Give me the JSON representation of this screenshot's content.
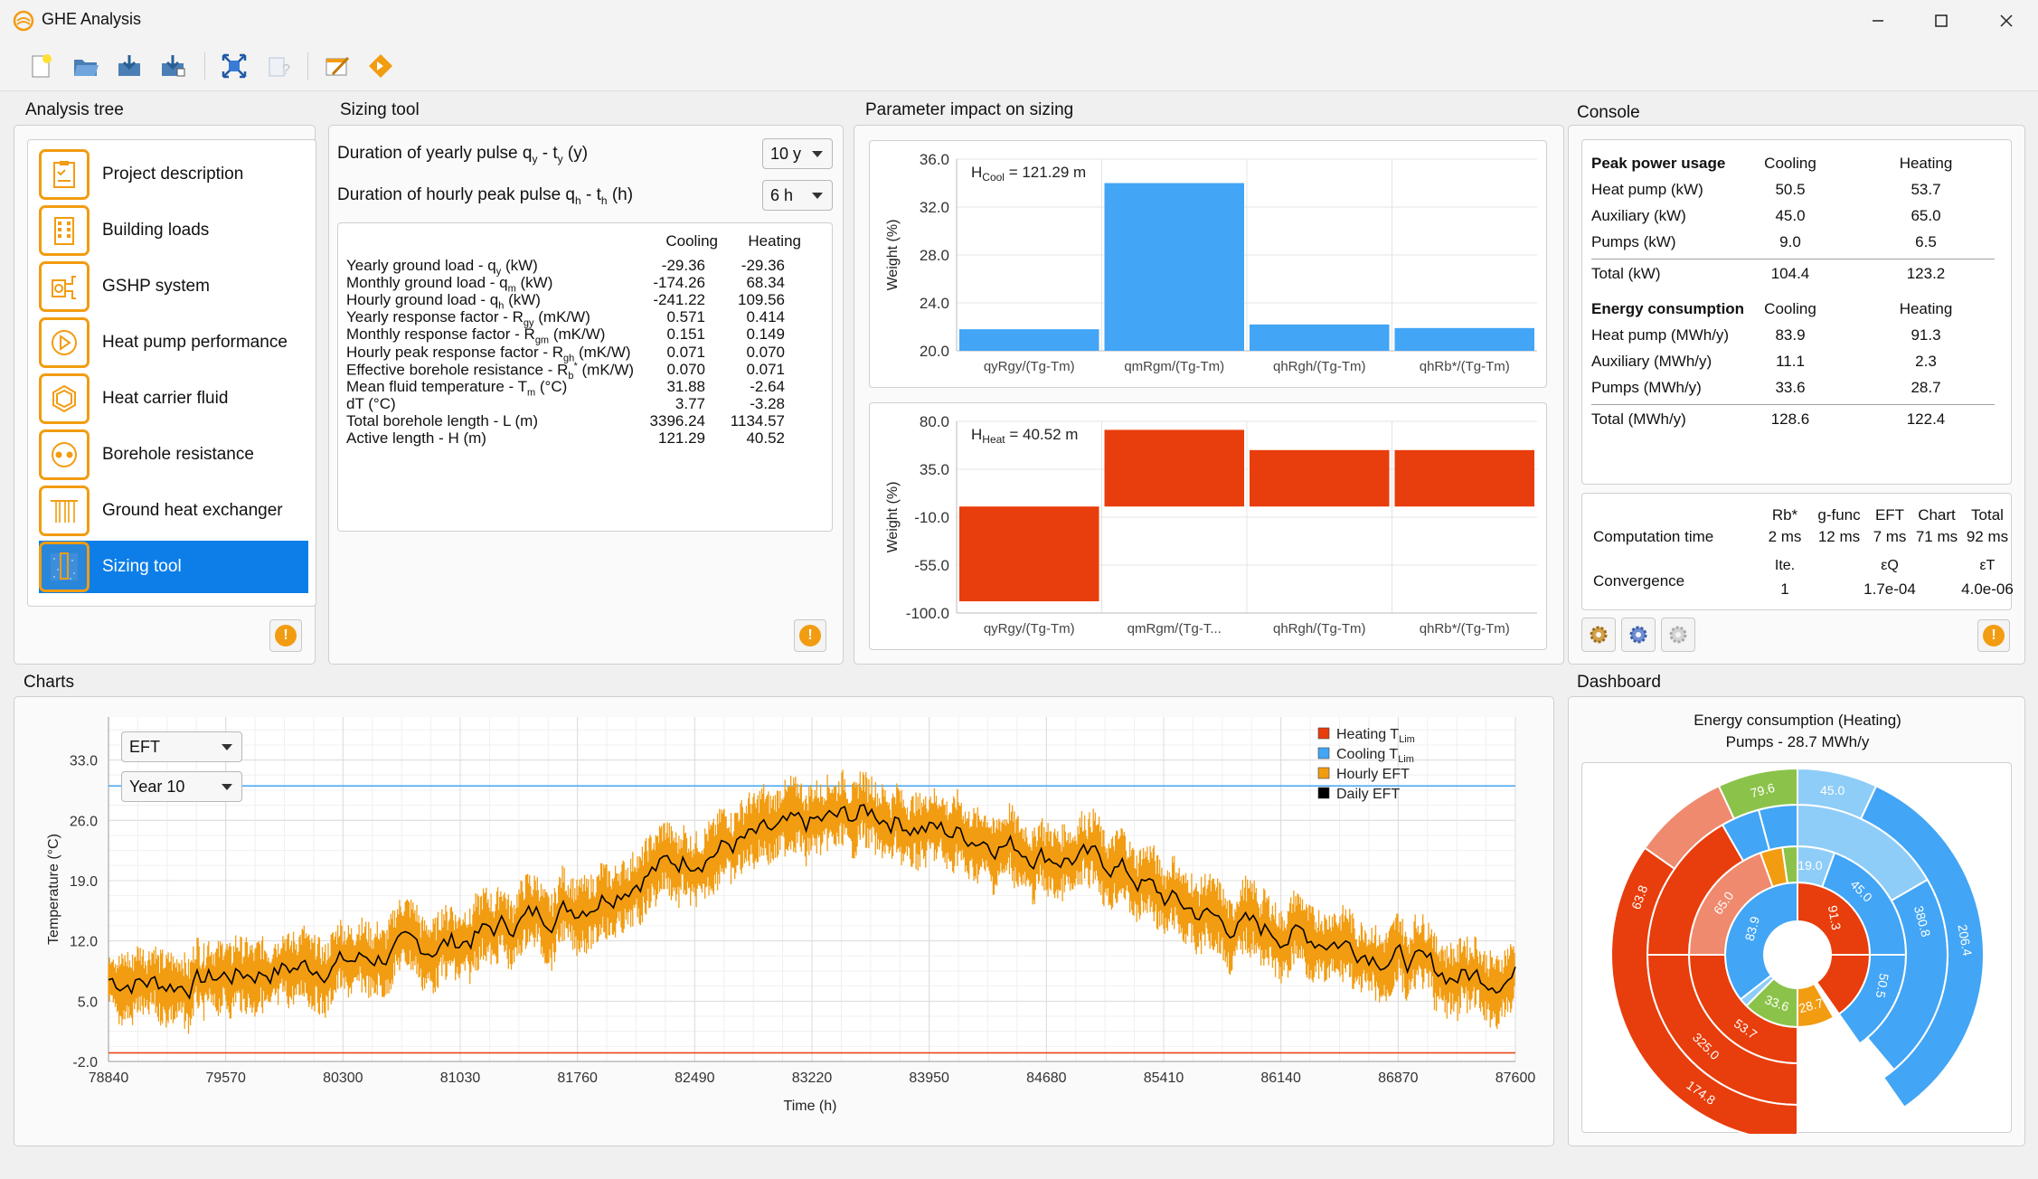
{
  "window": {
    "title": "GHE Analysis"
  },
  "analysis_tree": {
    "title": "Analysis tree",
    "items": [
      {
        "label": "Project description"
      },
      {
        "label": "Building loads"
      },
      {
        "label": "GSHP system"
      },
      {
        "label": "Heat pump performance"
      },
      {
        "label": "Heat carrier fluid"
      },
      {
        "label": "Borehole resistance"
      },
      {
        "label": "Ground heat exchanger"
      },
      {
        "label": "Sizing tool"
      }
    ]
  },
  "sizing_tool": {
    "title": "Sizing tool",
    "yearly_pulse_label": "Duration of yearly pulse q",
    "yearly_pulse_sub": "y",
    "yearly_pulse_mid": " - t",
    "yearly_pulse_sub2": "y",
    "yearly_pulse_end": " (y)",
    "yearly_pulse_value": "10 y",
    "hourly_pulse_label": "Duration of hourly peak pulse q",
    "hourly_pulse_sub": "h",
    "hourly_pulse_mid": " - t",
    "hourly_pulse_sub2": "h",
    "hourly_pulse_end": " (h)",
    "hourly_pulse_value": "6 h",
    "col_cooling": "Cooling",
    "col_heating": "Heating",
    "rows": [
      {
        "a": "Yearly ground load - q",
        "s": "y",
        "b": " (kW)",
        "cool": "-29.36",
        "heat": "-29.36"
      },
      {
        "a": "Monthly ground load - q",
        "s": "m",
        "b": " (kW)",
        "cool": "-174.26",
        "heat": "68.34"
      },
      {
        "a": "Hourly ground load - q",
        "s": "h",
        "b": " (kW)",
        "cool": "-241.22",
        "heat": "109.56"
      },
      {
        "a": "Yearly response factor - R",
        "s": "gy",
        "b": " (mK/W)",
        "cool": "0.571",
        "heat": "0.414"
      },
      {
        "a": "Monthly response factor - R",
        "s": "gm",
        "b": " (mK/W)",
        "cool": "0.151",
        "heat": "0.149"
      },
      {
        "a": "Hourly peak response factor - R",
        "s": "gh",
        "b": " (mK/W)",
        "cool": "0.071",
        "heat": "0.070"
      },
      {
        "a": "Effective borehole resistance - R",
        "s": "b",
        "sup": "*",
        "b": " (mK/W)",
        "cool": "0.070",
        "heat": "0.071"
      },
      {
        "a": "Mean fluid temperature - T",
        "s": "m",
        "b": " (°C)",
        "cool": "31.88",
        "heat": "-2.64"
      },
      {
        "a": "dT (°C)",
        "s": "",
        "b": "",
        "cool": "3.77",
        "heat": "-3.28"
      },
      {
        "a": "Total borehole length - L (m)",
        "s": "",
        "b": "",
        "cool": "3396.24",
        "heat": "1134.57"
      },
      {
        "a": "Active length - H (m)",
        "s": "",
        "b": "",
        "cool": "121.29",
        "heat": "40.52"
      }
    ]
  },
  "parameter_impact": {
    "title": "Parameter impact on sizing",
    "cool_chart": {
      "annotation_prefix": "H",
      "annotation_sub": "Cool",
      "annotation_value": " = 121.29 m",
      "ylabel": "Weight (%)",
      "yticks": [
        "36.0",
        "32.0",
        "28.0",
        "24.0",
        "20.0"
      ],
      "categories": [
        "qyRgy/(Tg-Tm)",
        "qmRgm/(Tg-Tm)",
        "qhRgh/(Tg-Tm)",
        "qhRb*/(Tg-Tm)"
      ],
      "values": [
        21.8,
        34.0,
        22.2,
        21.9
      ],
      "ylim": [
        20,
        36
      ],
      "color": "#42a5f5"
    },
    "heat_chart": {
      "annotation_prefix": "H",
      "annotation_sub": "Heat",
      "annotation_value": " = 40.52 m",
      "ylabel": "Weight (%)",
      "yticks": [
        "80.0",
        "35.0",
        "-10.0",
        "-55.0",
        "-100.0"
      ],
      "categories": [
        "qyRgy/(Tg-Tm)",
        "qmRgm/(Tg-T...",
        "qhRgh/(Tg-Tm)",
        "qhRb*/(Tg-Tm)"
      ],
      "values": [
        -89.0,
        72.0,
        53.0,
        53.0
      ],
      "ylim": [
        -100,
        80
      ],
      "color": "#e83d0c"
    }
  },
  "console": {
    "title": "Console",
    "peak_header": "Peak power usage",
    "energy_header": "Energy consumption",
    "col_cooling": "Cooling",
    "col_heating": "Heating",
    "peak_rows": [
      {
        "label": "Heat pump (kW)",
        "cool": "50.5",
        "heat": "53.7"
      },
      {
        "label": "Auxiliary (kW)",
        "cool": "45.0",
        "heat": "65.0"
      },
      {
        "label": "Pumps (kW)",
        "cool": "9.0",
        "heat": "6.5"
      }
    ],
    "peak_total": {
      "label": "Total (kW)",
      "cool": "104.4",
      "heat": "123.2"
    },
    "energy_rows": [
      {
        "label": "Heat pump (MWh/y)",
        "cool": "83.9",
        "heat": "91.3"
      },
      {
        "label": "Auxiliary (MWh/y)",
        "cool": "11.1",
        "heat": "2.3"
      },
      {
        "label": "Pumps (MWh/y)",
        "cool": "33.6",
        "heat": "28.7"
      }
    ],
    "energy_total": {
      "label": "Total (MWh/y)",
      "cool": "128.6",
      "heat": "122.4"
    },
    "computation_time_label": "Computation time",
    "convergence_label": "Convergence",
    "time_headers": [
      "Rb*",
      "g-func",
      "EFT",
      "Chart",
      "Total"
    ],
    "time_values": [
      "2 ms",
      "12 ms",
      "7 ms",
      "71 ms",
      "92 ms"
    ],
    "conv_headers": [
      "Ite.",
      "εQ",
      "εT"
    ],
    "conv_values": [
      "1",
      "1.7e-04",
      "4.0e-06"
    ]
  },
  "charts": {
    "title": "Charts",
    "series_select": "EFT",
    "year_select": "Year 10",
    "ylabel": "Temperature (°C)",
    "xlabel": "Time (h)",
    "yticks": [
      "33.0",
      "26.0",
      "19.0",
      "12.0",
      "5.0",
      "-2.0"
    ],
    "xticks": [
      "78840",
      "79570",
      "80300",
      "81030",
      "81760",
      "82490",
      "83220",
      "83950",
      "84680",
      "85410",
      "86140",
      "86870",
      "87600"
    ],
    "legend": [
      {
        "label": "Heating T",
        "sub": "Lim",
        "color": "#e83d0c"
      },
      {
        "label": "Cooling T",
        "sub": "Lim",
        "color": "#42a5f5"
      },
      {
        "label": "Hourly EFT",
        "sub": "",
        "color": "#f29c11"
      },
      {
        "label": "Daily EFT",
        "sub": "",
        "color": "#000000"
      }
    ],
    "chart_data": {
      "type": "line",
      "xlim": [
        78840,
        87600
      ],
      "ylim": [
        -2,
        38
      ],
      "cooling_tlim": 30.0,
      "heating_tlim": -1.0,
      "daily_eft_profile": [
        {
          "x": 78840,
          "y": 7.5
        },
        {
          "x": 79300,
          "y": 7.0
        },
        {
          "x": 79570,
          "y": 8.0
        },
        {
          "x": 80300,
          "y": 9.5
        },
        {
          "x": 81030,
          "y": 12.0
        },
        {
          "x": 81500,
          "y": 15.0
        },
        {
          "x": 81760,
          "y": 16.0
        },
        {
          "x": 82200,
          "y": 20.0
        },
        {
          "x": 82490,
          "y": 22.0
        },
        {
          "x": 82900,
          "y": 24.0
        },
        {
          "x": 83220,
          "y": 25.5
        },
        {
          "x": 83600,
          "y": 27.0
        },
        {
          "x": 83950,
          "y": 25.0
        },
        {
          "x": 84300,
          "y": 24.0
        },
        {
          "x": 84680,
          "y": 22.0
        },
        {
          "x": 85100,
          "y": 21.0
        },
        {
          "x": 85410,
          "y": 17.0
        },
        {
          "x": 85800,
          "y": 14.0
        },
        {
          "x": 86140,
          "y": 13.0
        },
        {
          "x": 86500,
          "y": 12.0
        },
        {
          "x": 86870,
          "y": 10.0
        },
        {
          "x": 87200,
          "y": 8.0
        },
        {
          "x": 87600,
          "y": 8.0
        }
      ],
      "hourly_amplitude": 3.0
    }
  },
  "dashboard": {
    "title": "Dashboard",
    "chart_title": "Energy consumption (Heating)",
    "chart_subtitle": "Pumps - 28.7 MWh/y",
    "sunburst_labels": [
      "91.3",
      "28.7",
      "33.6",
      "53.7",
      "83.9",
      "65.0",
      "45.0",
      "19.0",
      "50.5",
      "63.8",
      "380.8",
      "79.6",
      "45.0",
      "206.4",
      "325.0",
      "174.8"
    ]
  }
}
